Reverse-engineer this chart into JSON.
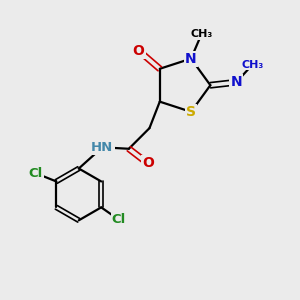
{
  "bg_color": "#ebebeb",
  "atom_colors": {
    "C": "#000000",
    "N": "#1010cc",
    "O": "#cc0000",
    "S": "#ccaa00",
    "Cl": "#228B22",
    "H": "#4488aa"
  },
  "bond_color": "#000000",
  "bond_width": 1.6,
  "xlim": [
    0,
    10
  ],
  "ylim": [
    0,
    10
  ]
}
